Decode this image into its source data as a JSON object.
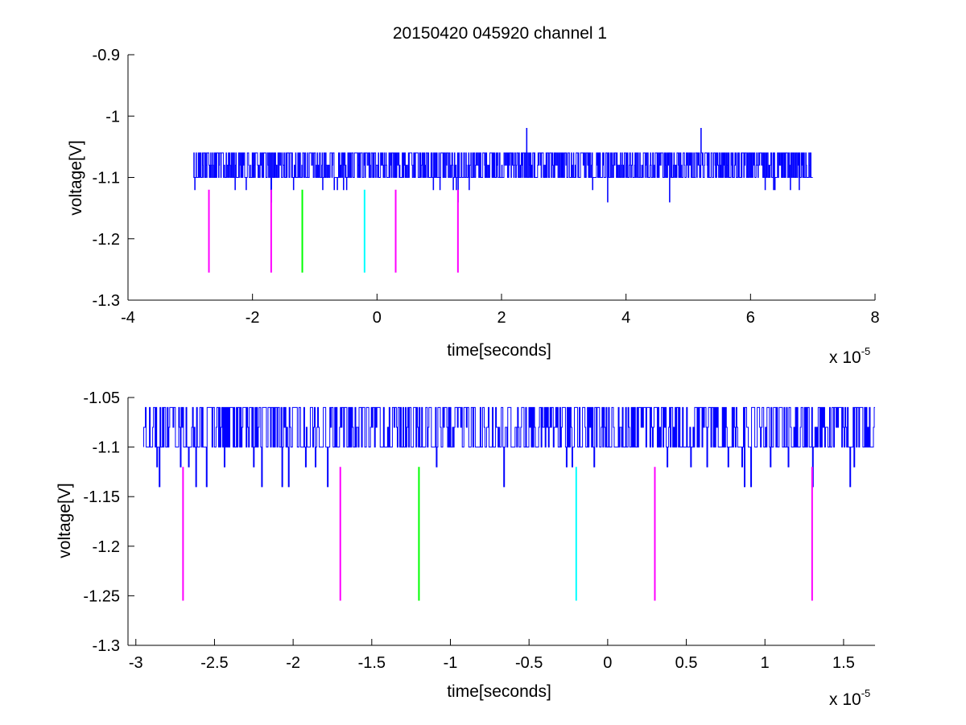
{
  "chart_data": [
    {
      "type": "line",
      "title": "20150420 045920 channel 1",
      "xlabel": "time[seconds]",
      "ylabel": "voltage[V]",
      "x_exponent_label": "x 10",
      "x_exponent": "-5",
      "xlim": [
        -4,
        8
      ],
      "ylim": [
        -1.3,
        -0.9
      ],
      "xticks": [
        -4,
        -2,
        0,
        2,
        4,
        6,
        8
      ],
      "xtick_labels": [
        "-4",
        "-2",
        "0",
        "2",
        "4",
        "6",
        "8"
      ],
      "yticks": [
        -1.3,
        -1.2,
        -1.1,
        -1,
        -0.9
      ],
      "ytick_labels": [
        "-1.3",
        "-1.2",
        "-1.1",
        "-1",
        "-0.9"
      ],
      "grid": false,
      "series": [
        {
          "color": "#0000ff",
          "x_range": [
            -2.95,
            7.0
          ],
          "levels": [
            -1.06,
            -1.08,
            -1.1,
            -1.12,
            -1.14
          ],
          "spikes": [
            {
              "x": 2.4,
              "y": -1.02
            },
            {
              "x": 4.7,
              "y": -1.02
            },
            {
              "x": 5.2,
              "y": -1.02
            },
            {
              "x": -1.7,
              "y": -1.14
            },
            {
              "x": 1.3,
              "y": -1.14
            },
            {
              "x": 0.9,
              "y": -1.12
            },
            {
              "x": 3.7,
              "y": -1.14
            },
            {
              "x": 4.7,
              "y": -1.14
            }
          ]
        }
      ],
      "markers": [
        {
          "x": -2.7,
          "y_top": -1.12,
          "y_bottom": -1.255,
          "color": "#ff00ff"
        },
        {
          "x": -1.7,
          "y_top": -1.12,
          "y_bottom": -1.255,
          "color": "#ff00ff"
        },
        {
          "x": -1.2,
          "y_top": -1.12,
          "y_bottom": -1.255,
          "color": "#00ff00"
        },
        {
          "x": -0.2,
          "y_top": -1.12,
          "y_bottom": -1.255,
          "color": "#00ffff"
        },
        {
          "x": 0.3,
          "y_top": -1.12,
          "y_bottom": -1.255,
          "color": "#ff00ff"
        },
        {
          "x": 1.3,
          "y_top": -1.12,
          "y_bottom": -1.255,
          "color": "#ff00ff"
        }
      ]
    },
    {
      "type": "line",
      "title": "",
      "xlabel": "time[seconds]",
      "ylabel": "voltage[V]",
      "x_exponent_label": "x 10",
      "x_exponent": "-5",
      "xlim": [
        -3.05,
        1.7
      ],
      "ylim": [
        -1.3,
        -1.05
      ],
      "xticks": [
        -3,
        -2.5,
        -2,
        -1.5,
        -1,
        -0.5,
        0,
        0.5,
        1,
        1.5
      ],
      "xtick_labels": [
        "-3",
        "-2.5",
        "-2",
        "-1.5",
        "-1",
        "-0.5",
        "0",
        "0.5",
        "1",
        "1.5"
      ],
      "yticks": [
        -1.3,
        -1.25,
        -1.2,
        -1.15,
        -1.1,
        -1.05
      ],
      "ytick_labels": [
        "-1.3",
        "-1.25",
        "-1.2",
        "-1.15",
        "-1.1",
        "-1.05"
      ],
      "grid": false,
      "series": [
        {
          "color": "#0000ff",
          "x_range": [
            -2.95,
            1.7
          ],
          "levels": [
            -1.06,
            -1.08,
            -1.1,
            -1.12,
            -1.14
          ],
          "dips": [
            {
              "x": -2.85,
              "y": -1.14
            },
            {
              "x": -2.62,
              "y": -1.14
            },
            {
              "x": -2.55,
              "y": -1.14
            },
            {
              "x": -2.2,
              "y": -1.14
            },
            {
              "x": -2.07,
              "y": -1.14
            },
            {
              "x": -2.03,
              "y": -1.14
            },
            {
              "x": -1.78,
              "y": -1.14
            },
            {
              "x": -0.66,
              "y": -1.14
            },
            {
              "x": 0.87,
              "y": -1.14
            },
            {
              "x": 0.91,
              "y": -1.14
            },
            {
              "x": 1.3,
              "y": -1.14
            },
            {
              "x": 1.54,
              "y": -1.14
            }
          ]
        }
      ],
      "markers": [
        {
          "x": -2.7,
          "y_top": -1.12,
          "y_bottom": -1.255,
          "color": "#ff00ff"
        },
        {
          "x": -1.7,
          "y_top": -1.12,
          "y_bottom": -1.255,
          "color": "#ff00ff"
        },
        {
          "x": -1.2,
          "y_top": -1.12,
          "y_bottom": -1.255,
          "color": "#00ff00"
        },
        {
          "x": -0.2,
          "y_top": -1.12,
          "y_bottom": -1.255,
          "color": "#00ffff"
        },
        {
          "x": 0.3,
          "y_top": -1.12,
          "y_bottom": -1.255,
          "color": "#ff00ff"
        },
        {
          "x": 1.3,
          "y_top": -1.12,
          "y_bottom": -1.255,
          "color": "#ff00ff"
        }
      ]
    }
  ]
}
